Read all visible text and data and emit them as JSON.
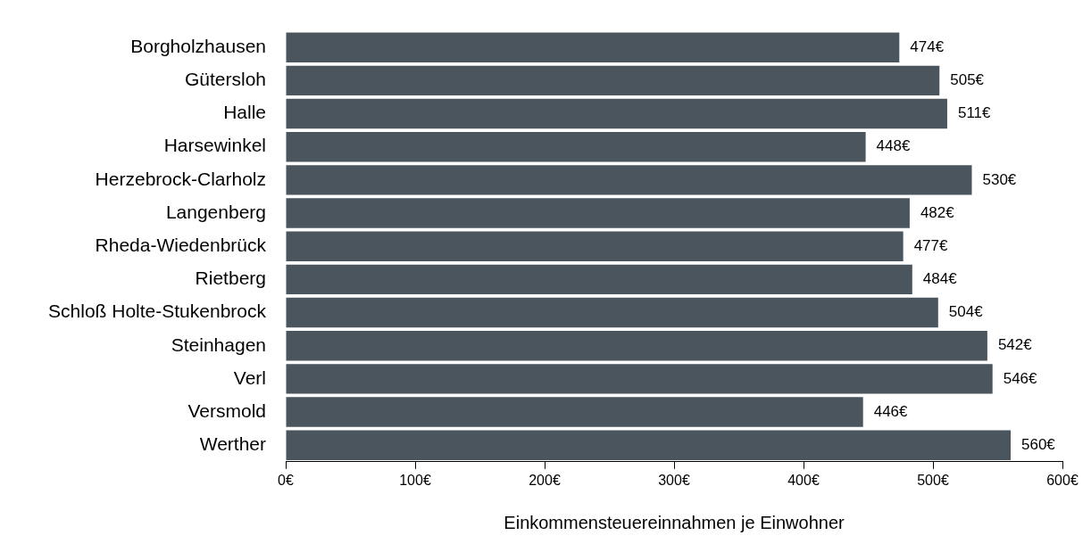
{
  "chart_data": {
    "type": "bar",
    "orientation": "horizontal",
    "xlabel": "Einkommensteuereinnahmen je Einwohner",
    "categories": [
      "Borgholzhausen",
      "Gütersloh",
      "Halle",
      "Harsewinkel",
      "Herzebrock-Clarholz",
      "Langenberg",
      "Rheda-Wiedenbrück",
      "Rietberg",
      "Schloß Holte-Stukenbrock",
      "Steinhagen",
      "Verl",
      "Versmold",
      "Werther"
    ],
    "values": [
      474,
      505,
      511,
      448,
      530,
      482,
      477,
      484,
      504,
      542,
      546,
      446,
      560
    ],
    "value_labels": [
      "474€",
      "505€",
      "511€",
      "448€",
      "530€",
      "482€",
      "477€",
      "484€",
      "504€",
      "542€",
      "546€",
      "446€",
      "560€"
    ],
    "color": "#4a555e",
    "xlim": [
      0,
      600
    ],
    "xticks": [
      {
        "value": 0,
        "label": "0€"
      },
      {
        "value": 100,
        "label": "100€"
      },
      {
        "value": 200,
        "label": "200€"
      },
      {
        "value": 300,
        "label": "300€"
      },
      {
        "value": 400,
        "label": "400€"
      },
      {
        "value": 500,
        "label": "500€"
      },
      {
        "value": 600,
        "label": "600€"
      }
    ]
  }
}
